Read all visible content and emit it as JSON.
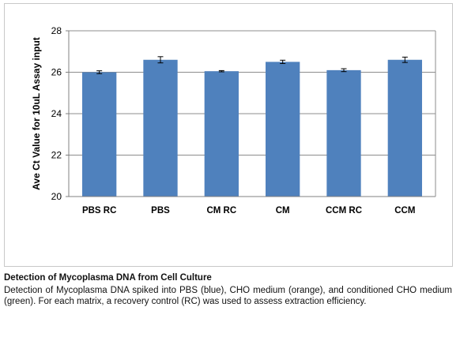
{
  "chart_data": {
    "type": "bar",
    "categories": [
      "PBS RC",
      "PBS",
      "CM RC",
      "CM",
      "CCM RC",
      "CCM"
    ],
    "values": [
      26.0,
      26.6,
      26.05,
      26.5,
      26.1,
      26.6
    ],
    "error": [
      0.07,
      0.15,
      0.03,
      0.08,
      0.07,
      0.13
    ],
    "ylabel": "Ave Ct Value for 10uL Assay input",
    "xlabel": "",
    "ylim": [
      20,
      28
    ],
    "yticks": [
      20,
      22,
      24,
      26,
      28
    ],
    "grid": true,
    "bar_color": "#4f81bd",
    "error_color": "#000000"
  },
  "caption": {
    "title": "Detection of Mycoplasma DNA from Cell Culture",
    "body": "Detection of Mycoplasma DNA spiked into PBS (blue), CHO medium (orange), and conditioned CHO medium (green). For each matrix, a recovery control (RC) was used to assess extraction efficiency."
  }
}
